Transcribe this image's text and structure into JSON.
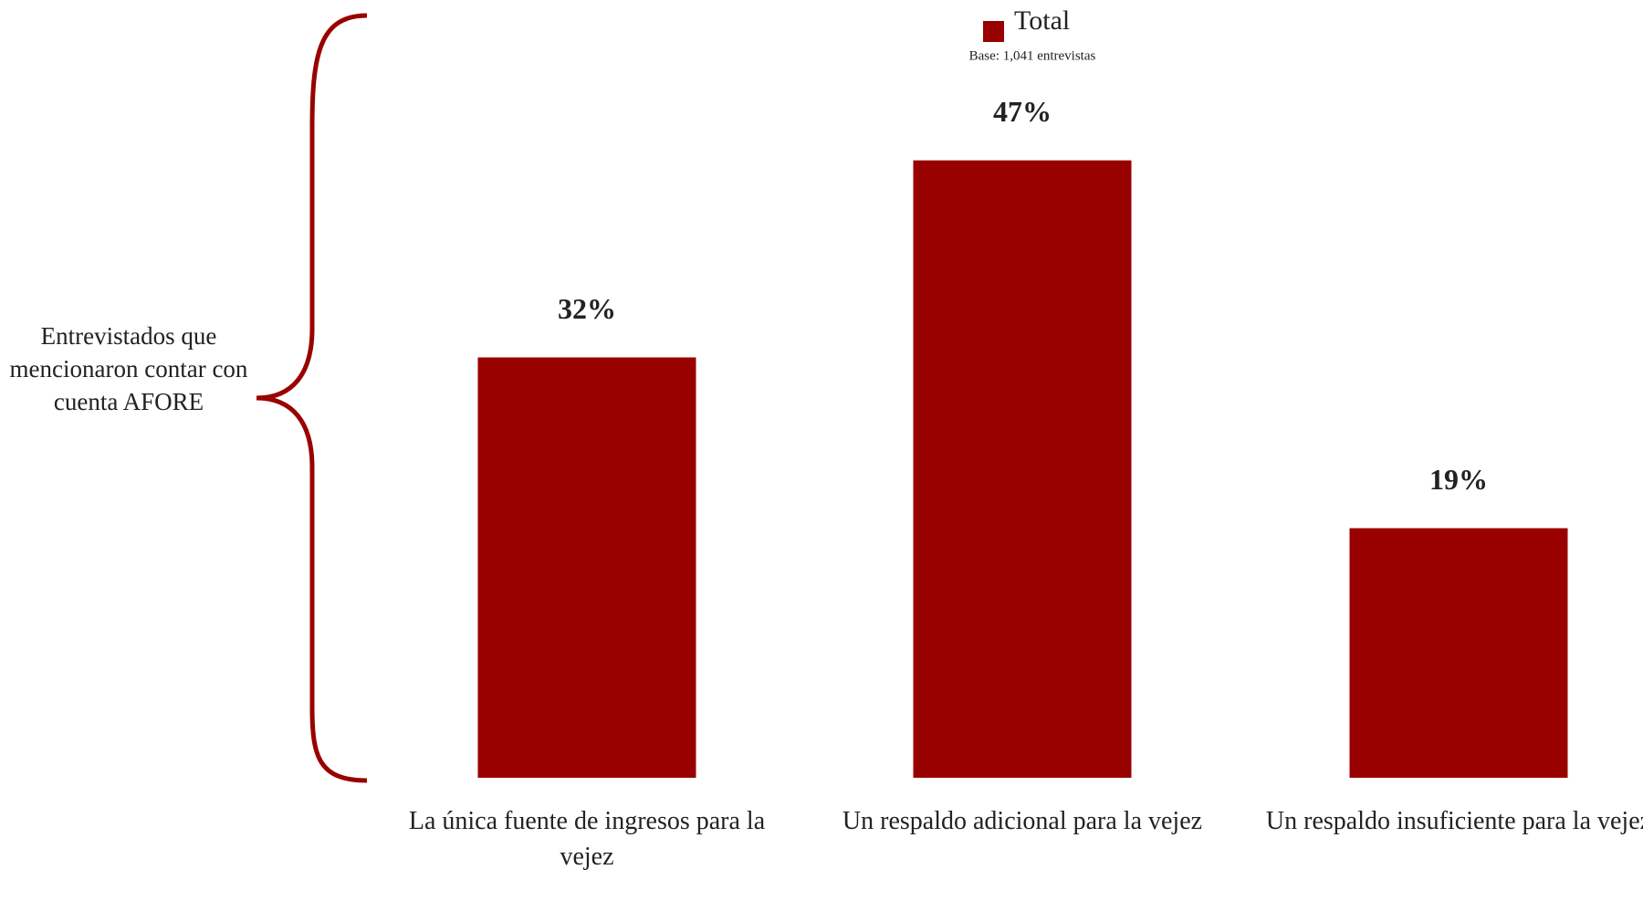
{
  "chart_data": {
    "type": "bar",
    "annotation": "Entrevistados que mencionaron contar con cuenta AFORE",
    "note": "Base: 1,041 entrevistas",
    "categories": [
      "La única fuente de ingresos para la vejez",
      "Un respaldo adicional para la vejez",
      "Un respaldo insuficiente para la vejez"
    ],
    "series": [
      {
        "name": "Total",
        "color": "#990000",
        "values": [
          32,
          47,
          19
        ],
        "value_labels": [
          "32%",
          "47%",
          "19%"
        ]
      }
    ],
    "legend": "top"
  }
}
